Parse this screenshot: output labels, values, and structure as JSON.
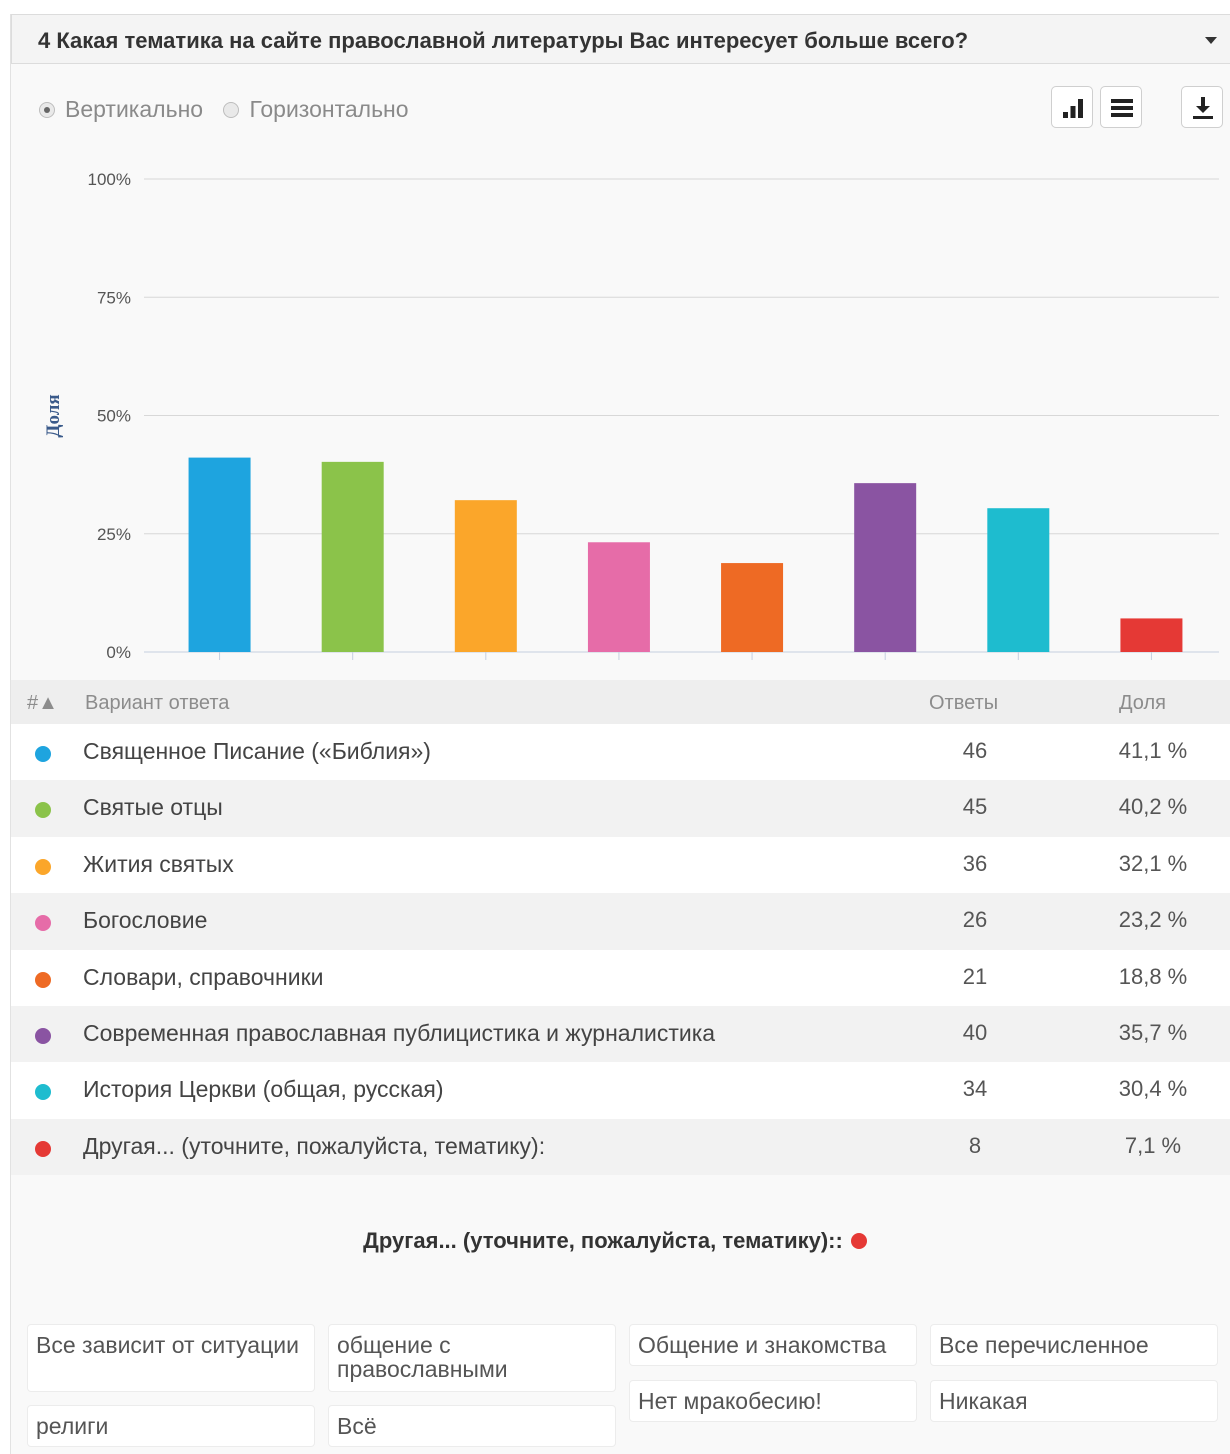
{
  "header": {
    "title": "4 Какая тематика на сайте православной литературы Вас интересует больше всего?"
  },
  "orientation": {
    "vertical": "Вертикально",
    "horizontal": "Горизонтально",
    "selected": "vertical"
  },
  "toolbar": {
    "icons": [
      "bar-chart-icon",
      "table-list-icon",
      "download-icon"
    ]
  },
  "chart_data": {
    "type": "bar",
    "ylabel": "Доля",
    "ylim": [
      0,
      100
    ],
    "yticks": [
      "0%",
      "25%",
      "50%",
      "75%",
      "100%"
    ],
    "ytick_values": [
      0,
      25,
      50,
      75,
      100
    ],
    "grid": true,
    "categories": [
      "Священное Писание («Библия»)",
      "Святые отцы",
      "Жития святых",
      "Богословие",
      "Словари, справочники",
      "Современная православная публицистика и журналистика",
      "История Церкви (общая, русская)",
      "Другая... (уточните, пожалуйста, тематику):"
    ],
    "values": [
      41.1,
      40.2,
      32.1,
      23.2,
      18.8,
      35.7,
      30.4,
      7.1
    ],
    "colors": [
      "#1ea4df",
      "#8bc34a",
      "#fba62a",
      "#e66ca8",
      "#ee6a24",
      "#8a54a2",
      "#1ebccf",
      "#e53935"
    ]
  },
  "table": {
    "headers": {
      "num": "#▲",
      "option": "Вариант ответа",
      "answers": "Ответы",
      "share": "Доля"
    },
    "rows": [
      {
        "label": "Священное Писание («Библия»)",
        "count": "46",
        "share": "41,1 %",
        "color": "#1ea4df"
      },
      {
        "label": "Святые отцы",
        "count": "45",
        "share": "40,2 %",
        "color": "#8bc34a"
      },
      {
        "label": "Жития святых",
        "count": "36",
        "share": "32,1 %",
        "color": "#fba62a"
      },
      {
        "label": "Богословие",
        "count": "26",
        "share": "23,2 %",
        "color": "#e66ca8"
      },
      {
        "label": "Словари, справочники",
        "count": "21",
        "share": "18,8 %",
        "color": "#ee6a24"
      },
      {
        "label": "Современная православная публицистика и журналистика",
        "count": "40",
        "share": "35,7 %",
        "color": "#8a54a2"
      },
      {
        "label": "История Церкви (общая, русская)",
        "count": "34",
        "share": "30,4 %",
        "color": "#1ebccf"
      },
      {
        "label": "Другая... (уточните, пожалуйста, тематику):",
        "count": "8",
        "share": "7,1 %",
        "color": "#e53935"
      }
    ]
  },
  "other": {
    "title": "Другая... (уточните, пожалуйста, тематику)::",
    "answers": [
      "Все зависит от ситуации",
      "общение с православными",
      "Общение и знакомства",
      "Все перечисленное",
      "Нет мракобесию!",
      "Никакая",
      "религи",
      "Всё"
    ]
  }
}
